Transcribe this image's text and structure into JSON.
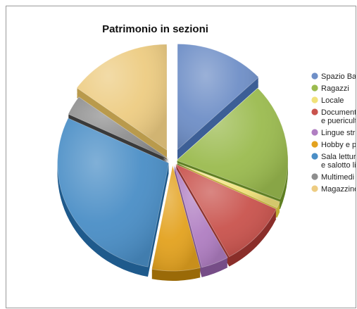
{
  "chart_data": {
    "type": "pie",
    "title": "Patrimonio in sezioni",
    "legend_position": "right",
    "slices": [
      {
        "label": "Spazio Bambini",
        "legend_lines": [
          "Spazio Ba"
        ],
        "value": 13,
        "color": "#6f8fc7",
        "side": "#3d5f96"
      },
      {
        "label": "Ragazzi",
        "legend_lines": [
          "Ragazzi"
        ],
        "value": 18,
        "color": "#9bbb4f",
        "side": "#5f7f22"
      },
      {
        "label": "Locale",
        "legend_lines": [
          "Locale"
        ],
        "value": 1,
        "color": "#f1e27a",
        "side": "#bfae36"
      },
      {
        "label": "Documentazione e puericultura",
        "legend_lines": [
          "Document",
          "e puericult"
        ],
        "value": 10,
        "color": "#c9534d",
        "side": "#8a2e2a"
      },
      {
        "label": "Lingue straniere",
        "legend_lines": [
          "Lingue str"
        ],
        "value": 4,
        "color": "#b07ec2",
        "side": "#764d87"
      },
      {
        "label": "Hobby e passatempi",
        "legend_lines": [
          "Hobby e p"
        ],
        "value": 7,
        "color": "#e3a21f",
        "side": "#9a6a08"
      },
      {
        "label": "Sala lettura e salotto libri",
        "legend_lines": [
          "Sala lettur",
          "e salotto li"
        ],
        "value": 29,
        "color": "#4a8ec6",
        "side": "#1f5a8c"
      },
      {
        "label": "Multimediale",
        "legend_lines": [
          "Multimedi"
        ],
        "value": 3,
        "color": "#8e8e8e",
        "side": "#3a3a3a"
      },
      {
        "label": "Magazzino",
        "legend_lines": [
          "Magazzino"
        ],
        "value": 15,
        "color": "#edcc82",
        "side": "#b99a4c"
      }
    ]
  }
}
